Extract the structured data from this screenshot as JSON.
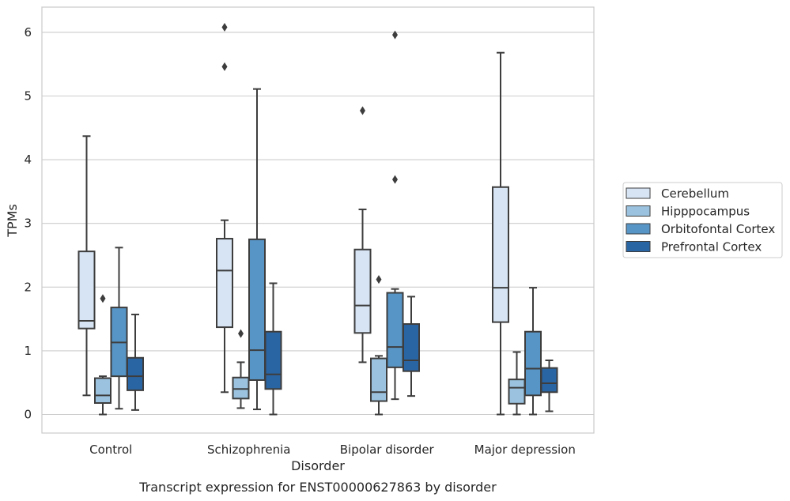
{
  "chart_data": {
    "type": "boxplot",
    "title": "Transcript expression for ENST00000627863 by disorder",
    "xlabel": "Disorder",
    "ylabel": "TPMs",
    "ylim": [
      -0.3,
      6.4
    ],
    "yticks": [
      0,
      1,
      2,
      3,
      4,
      5,
      6
    ],
    "grid": true,
    "legend_position": "right",
    "categories": [
      "Control",
      "Schizophrenia",
      "Bipolar disorder",
      "Major depression"
    ],
    "series": [
      {
        "name": "Cerebellum",
        "color": "#d6e4f3",
        "boxes": [
          {
            "whisker_low": 0.3,
            "q1": 1.35,
            "median": 1.47,
            "q3": 2.56,
            "whisker_high": 4.37,
            "outliers": []
          },
          {
            "whisker_low": 0.35,
            "q1": 1.37,
            "median": 2.26,
            "q3": 2.76,
            "whisker_high": 3.05,
            "outliers": [
              5.46,
              6.08
            ]
          },
          {
            "whisker_low": 0.82,
            "q1": 1.28,
            "median": 1.71,
            "q3": 2.59,
            "whisker_high": 3.22,
            "outliers": [
              4.77
            ]
          },
          {
            "whisker_low": 0.0,
            "q1": 1.45,
            "median": 1.99,
            "q3": 3.57,
            "whisker_high": 5.68,
            "outliers": []
          }
        ]
      },
      {
        "name": "Hipppocampus",
        "color": "#9bc3df",
        "boxes": [
          {
            "whisker_low": 0.0,
            "q1": 0.18,
            "median": 0.3,
            "q3": 0.57,
            "whisker_high": 0.6,
            "outliers": [
              1.82
            ]
          },
          {
            "whisker_low": 0.1,
            "q1": 0.25,
            "median": 0.4,
            "q3": 0.58,
            "whisker_high": 0.82,
            "outliers": [
              1.27
            ]
          },
          {
            "whisker_low": 0.0,
            "q1": 0.21,
            "median": 0.35,
            "q3": 0.88,
            "whisker_high": 0.92,
            "outliers": [
              2.12
            ]
          },
          {
            "whisker_low": 0.0,
            "q1": 0.17,
            "median": 0.42,
            "q3": 0.55,
            "whisker_high": 0.98,
            "outliers": []
          }
        ]
      },
      {
        "name": "Orbitofontal Cortex",
        "color": "#5795c6",
        "boxes": [
          {
            "whisker_low": 0.09,
            "q1": 0.6,
            "median": 1.13,
            "q3": 1.68,
            "whisker_high": 2.62,
            "outliers": []
          },
          {
            "whisker_low": 0.08,
            "q1": 0.54,
            "median": 1.01,
            "q3": 2.75,
            "whisker_high": 5.11,
            "outliers": []
          },
          {
            "whisker_low": 0.24,
            "q1": 0.74,
            "median": 1.06,
            "q3": 1.91,
            "whisker_high": 1.97,
            "outliers": [
              3.69,
              5.96
            ]
          },
          {
            "whisker_low": 0.0,
            "q1": 0.3,
            "median": 0.72,
            "q3": 1.3,
            "whisker_high": 1.99,
            "outliers": []
          }
        ]
      },
      {
        "name": "Prefrontal Cortex",
        "color": "#2a65a3",
        "boxes": [
          {
            "whisker_low": 0.07,
            "q1": 0.38,
            "median": 0.6,
            "q3": 0.89,
            "whisker_high": 1.57,
            "outliers": []
          },
          {
            "whisker_low": 0.0,
            "q1": 0.4,
            "median": 0.63,
            "q3": 1.3,
            "whisker_high": 2.06,
            "outliers": []
          },
          {
            "whisker_low": 0.29,
            "q1": 0.68,
            "median": 0.85,
            "q3": 1.42,
            "whisker_high": 1.85,
            "outliers": []
          },
          {
            "whisker_low": 0.05,
            "q1": 0.35,
            "median": 0.49,
            "q3": 0.73,
            "whisker_high": 0.85,
            "outliers": []
          }
        ]
      }
    ]
  }
}
